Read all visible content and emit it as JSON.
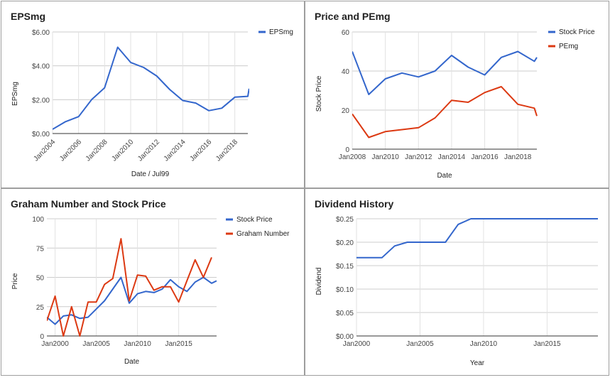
{
  "chart_data": [
    {
      "type": "line",
      "title": "EPSmg",
      "xlabel": "Date / Jul99",
      "ylabel": "EPSmg",
      "ylim": [
        0,
        6
      ],
      "xlim": [
        2004,
        2019
      ],
      "y_ticks": [
        "$0.00",
        "$2.00",
        "$4.00",
        "$6.00"
      ],
      "y_tick_values": [
        0,
        2,
        4,
        6
      ],
      "x_ticks": [
        "Jan2004",
        "Jan2006",
        "Jan2008",
        "Jan2010",
        "Jan2012",
        "Jan2014",
        "Jan2016",
        "Jan2018"
      ],
      "x_tick_values": [
        2004,
        2006,
        2008,
        2010,
        2012,
        2014,
        2016,
        2018
      ],
      "legend_position": "right",
      "series": [
        {
          "name": "EPSmg",
          "color": "#3366cc",
          "x": [
            2004,
            2005,
            2006,
            2007,
            2008,
            2009,
            2010,
            2011,
            2012,
            2013,
            2014,
            2015,
            2016,
            2017,
            2018,
            2019,
            2019.1
          ],
          "values": [
            0.25,
            0.7,
            1.0,
            2.0,
            2.7,
            5.1,
            4.2,
            3.9,
            3.4,
            2.6,
            1.95,
            1.8,
            1.35,
            1.5,
            2.15,
            2.2,
            2.65
          ]
        }
      ]
    },
    {
      "type": "line",
      "title": "Price and PEmg",
      "xlabel": "Date",
      "ylabel": "Stock Price",
      "ylim": [
        0,
        60
      ],
      "xlim": [
        2008,
        2019.15
      ],
      "y_ticks": [
        "0",
        "20",
        "40",
        "60"
      ],
      "y_tick_values": [
        0,
        20,
        40,
        60
      ],
      "x_ticks": [
        "Jan2008",
        "Jan2010",
        "Jan2012",
        "Jan2014",
        "Jan2016",
        "Jan2018"
      ],
      "x_tick_values": [
        2008,
        2010,
        2012,
        2014,
        2016,
        2018
      ],
      "legend_position": "right",
      "series": [
        {
          "name": "Stock Price",
          "color": "#3366cc",
          "x": [
            2008,
            2009,
            2010,
            2011,
            2012,
            2013,
            2014,
            2015,
            2016,
            2017,
            2018,
            2019,
            2019.15
          ],
          "values": [
            50,
            28,
            36,
            39,
            37,
            40,
            48,
            42,
            38,
            47,
            50,
            45,
            47
          ]
        },
        {
          "name": "PEmg",
          "color": "#dc3912",
          "x": [
            2008,
            2009,
            2010,
            2011,
            2012,
            2013,
            2014,
            2015,
            2016,
            2017,
            2018,
            2019,
            2019.15
          ],
          "values": [
            18,
            6,
            9,
            10,
            11,
            16,
            25,
            24,
            29,
            32,
            23,
            21,
            17
          ]
        }
      ]
    },
    {
      "type": "line",
      "title": "Graham Number and Stock Price",
      "xlabel": "Date",
      "ylabel": "Price",
      "ylim": [
        0,
        100
      ],
      "xlim": [
        1999,
        2019.6
      ],
      "y_ticks": [
        "0",
        "25",
        "50",
        "75",
        "100"
      ],
      "y_tick_values": [
        0,
        25,
        50,
        75,
        100
      ],
      "x_ticks": [
        "Jan2000",
        "Jan2005",
        "Jan2010",
        "Jan2015"
      ],
      "x_tick_values": [
        2000,
        2005,
        2010,
        2015
      ],
      "legend_position": "right",
      "series": [
        {
          "name": "Stock Price",
          "color": "#3366cc",
          "x": [
            1999,
            2000,
            2001,
            2002,
            2003,
            2004,
            2005,
            2006,
            2007,
            2008,
            2009,
            2010,
            2011,
            2012,
            2013,
            2014,
            2015,
            2016,
            2017,
            2018,
            2019,
            2019.6
          ],
          "values": [
            16,
            10,
            17,
            18,
            15,
            16,
            23,
            30,
            40,
            50,
            28,
            36,
            38,
            37,
            40,
            48,
            42,
            38,
            46,
            50,
            45,
            47
          ]
        },
        {
          "name": "Graham Number",
          "color": "#dc3912",
          "x": [
            1999,
            2000,
            2001,
            2002,
            2003,
            2004,
            2005,
            2006,
            2007,
            2008,
            2009,
            2010,
            2011,
            2012,
            2013,
            2014,
            2015,
            2016,
            2017,
            2018,
            2019
          ],
          "values": [
            13,
            34,
            0,
            25,
            0,
            29,
            29,
            44,
            49,
            83,
            30,
            52,
            51,
            39,
            42,
            42,
            29,
            47,
            65,
            50,
            67
          ]
        }
      ]
    },
    {
      "type": "line",
      "title": "Dividend History",
      "xlabel": "Year",
      "ylabel": "Dividend",
      "ylim": [
        0,
        0.25
      ],
      "xlim": [
        2000,
        2019
      ],
      "y_ticks": [
        "$0.00",
        "$0.05",
        "$0.10",
        "$0.15",
        "$0.20",
        "$0.25"
      ],
      "y_tick_values": [
        0,
        0.05,
        0.1,
        0.15,
        0.2,
        0.25
      ],
      "x_ticks": [
        "Jan2000",
        "Jan2005",
        "Jan2010",
        "Jan2015"
      ],
      "x_tick_values": [
        2000,
        2005,
        2010,
        2015
      ],
      "series": [
        {
          "name": "",
          "color": "#3366cc",
          "x": [
            2000,
            2002,
            2003,
            2004,
            2007,
            2008,
            2009,
            2019
          ],
          "values": [
            0.167,
            0.167,
            0.192,
            0.2,
            0.2,
            0.238,
            0.25,
            0.25
          ]
        }
      ]
    }
  ]
}
